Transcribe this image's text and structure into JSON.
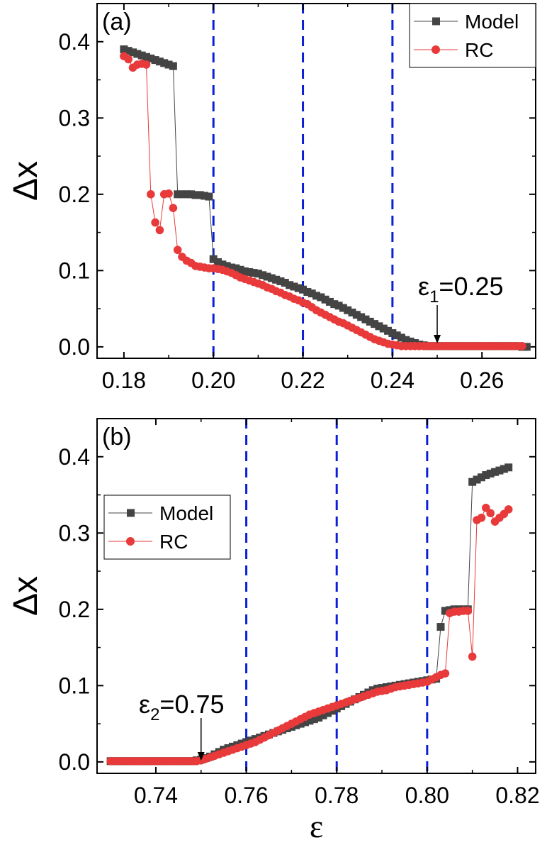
{
  "colors": {
    "model": "#444444",
    "rc": "#e83a3a",
    "vline": "#0a1fd6"
  },
  "chart_data": [
    {
      "type": "scatter",
      "panel_label": "(a)",
      "xlabel": "",
      "ylabel": "Δx",
      "xlim": [
        0.174,
        0.272
      ],
      "ylim": [
        -0.015,
        0.45
      ],
      "xticks": [
        0.18,
        0.2,
        0.22,
        0.24,
        0.26
      ],
      "xtick_labels": [
        "0.18",
        "0.20",
        "0.22",
        "0.24",
        "0.26"
      ],
      "yticks": [
        0.0,
        0.1,
        0.2,
        0.3,
        0.4
      ],
      "ytick_labels": [
        "0.0",
        "0.1",
        "0.2",
        "0.3",
        "0.4"
      ],
      "vlines": [
        0.2,
        0.22,
        0.24
      ],
      "legend": {
        "position": "top-right",
        "entries": [
          "Model",
          "RC"
        ]
      },
      "annotation": {
        "base": "ε",
        "sub": "1",
        "rest": "=0.25",
        "x": 0.25,
        "y": 0.002
      },
      "series": [
        {
          "name": "Model",
          "marker": "square",
          "x": [
            0.18,
            0.181,
            0.182,
            0.183,
            0.184,
            0.185,
            0.186,
            0.187,
            0.188,
            0.189,
            0.19,
            0.191,
            0.192,
            0.193,
            0.194,
            0.195,
            0.196,
            0.197,
            0.198,
            0.199,
            0.2,
            0.201,
            0.202,
            0.203,
            0.204,
            0.205,
            0.206,
            0.207,
            0.208,
            0.209,
            0.21,
            0.211,
            0.212,
            0.213,
            0.214,
            0.215,
            0.216,
            0.217,
            0.218,
            0.219,
            0.22,
            0.221,
            0.222,
            0.223,
            0.224,
            0.225,
            0.226,
            0.227,
            0.228,
            0.229,
            0.23,
            0.231,
            0.232,
            0.233,
            0.234,
            0.235,
            0.236,
            0.237,
            0.238,
            0.239,
            0.24,
            0.241,
            0.242,
            0.243,
            0.244,
            0.245,
            0.246,
            0.247,
            0.248,
            0.249,
            0.25,
            0.251,
            0.252,
            0.253,
            0.254,
            0.255,
            0.256,
            0.257,
            0.258,
            0.259,
            0.26,
            0.261,
            0.262,
            0.263,
            0.264,
            0.265,
            0.266,
            0.267,
            0.268,
            0.269,
            0.27
          ],
          "y": [
            0.39,
            0.388,
            0.386,
            0.384,
            0.382,
            0.38,
            0.378,
            0.376,
            0.374,
            0.372,
            0.37,
            0.368,
            0.2,
            0.2,
            0.2,
            0.2,
            0.199,
            0.199,
            0.198,
            0.197,
            0.115,
            0.111,
            0.108,
            0.106,
            0.104,
            0.103,
            0.101,
            0.099,
            0.098,
            0.097,
            0.096,
            0.094,
            0.092,
            0.09,
            0.088,
            0.086,
            0.084,
            0.081,
            0.079,
            0.077,
            0.075,
            0.072,
            0.07,
            0.067,
            0.065,
            0.062,
            0.059,
            0.056,
            0.054,
            0.051,
            0.048,
            0.045,
            0.042,
            0.039,
            0.036,
            0.033,
            0.03,
            0.027,
            0.024,
            0.021,
            0.018,
            0.015,
            0.012,
            0.009,
            0.007,
            0.005,
            0.003,
            0.002,
            0.001,
            0.001,
            0.001,
            0.001,
            0.001,
            0.001,
            0.001,
            0.001,
            0.001,
            0.001,
            0.001,
            0.001,
            0.001,
            0.001,
            0.001,
            0.001,
            0.001,
            0.001,
            0.001,
            0.001,
            0.001,
            0.0,
            0.0
          ]
        },
        {
          "name": "RC",
          "marker": "circle",
          "x": [
            0.18,
            0.181,
            0.182,
            0.183,
            0.184,
            0.185,
            0.186,
            0.187,
            0.188,
            0.189,
            0.19,
            0.191,
            0.192,
            0.193,
            0.194,
            0.195,
            0.196,
            0.197,
            0.198,
            0.199,
            0.2,
            0.201,
            0.202,
            0.203,
            0.204,
            0.205,
            0.206,
            0.207,
            0.208,
            0.209,
            0.21,
            0.211,
            0.212,
            0.213,
            0.214,
            0.215,
            0.216,
            0.217,
            0.218,
            0.219,
            0.22,
            0.221,
            0.222,
            0.223,
            0.224,
            0.225,
            0.226,
            0.227,
            0.228,
            0.229,
            0.23,
            0.231,
            0.232,
            0.233,
            0.234,
            0.235,
            0.236,
            0.237,
            0.238,
            0.239,
            0.24,
            0.241,
            0.242,
            0.243,
            0.244,
            0.245,
            0.246,
            0.247,
            0.248,
            0.249,
            0.25,
            0.251,
            0.252,
            0.253,
            0.254,
            0.255,
            0.256,
            0.257,
            0.258,
            0.259,
            0.26,
            0.261,
            0.262,
            0.263,
            0.264,
            0.265,
            0.266,
            0.267,
            0.268,
            0.269
          ],
          "y": [
            0.381,
            0.377,
            0.366,
            0.37,
            0.371,
            0.37,
            0.2,
            0.163,
            0.153,
            0.2,
            0.201,
            0.182,
            0.127,
            0.118,
            0.113,
            0.11,
            0.106,
            0.105,
            0.104,
            0.103,
            0.103,
            0.102,
            0.101,
            0.099,
            0.097,
            0.094,
            0.091,
            0.089,
            0.087,
            0.085,
            0.083,
            0.081,
            0.078,
            0.076,
            0.073,
            0.071,
            0.068,
            0.066,
            0.063,
            0.061,
            0.058,
            0.056,
            0.052,
            0.048,
            0.045,
            0.042,
            0.039,
            0.036,
            0.033,
            0.031,
            0.028,
            0.025,
            0.022,
            0.019,
            0.016,
            0.013,
            0.01,
            0.008,
            0.006,
            0.004,
            0.003,
            0.002,
            0.001,
            0.001,
            0.001,
            0.001,
            0.001,
            0.001,
            0.001,
            0.001,
            0.001,
            0.001,
            0.001,
            0.001,
            0.001,
            0.001,
            0.001,
            0.001,
            0.001,
            0.001,
            0.001,
            0.001,
            0.001,
            0.001,
            0.001,
            0.001,
            0.001,
            0.001,
            0.001,
            0.001
          ]
        }
      ]
    },
    {
      "type": "scatter",
      "panel_label": "(b)",
      "xlabel": "ε",
      "ylabel": "Δx",
      "xlim": [
        0.727,
        0.824
      ],
      "ylim": [
        -0.015,
        0.45
      ],
      "xticks": [
        0.74,
        0.76,
        0.78,
        0.8,
        0.82
      ],
      "xtick_labels": [
        "0.74",
        "0.76",
        "0.78",
        "0.80",
        "0.82"
      ],
      "yticks": [
        0.0,
        0.1,
        0.2,
        0.3,
        0.4
      ],
      "ytick_labels": [
        "0.0",
        "0.1",
        "0.2",
        "0.3",
        "0.4"
      ],
      "vlines": [
        0.76,
        0.78,
        0.8
      ],
      "legend": {
        "position": "middle-left",
        "entries": [
          "Model",
          "RC"
        ]
      },
      "annotation": {
        "base": "ε",
        "sub": "2",
        "rest": "=0.75",
        "x": 0.75,
        "y": 0.002
      },
      "series": [
        {
          "name": "Model",
          "marker": "square",
          "x": [
            0.73,
            0.731,
            0.732,
            0.733,
            0.734,
            0.735,
            0.736,
            0.737,
            0.738,
            0.739,
            0.74,
            0.741,
            0.742,
            0.743,
            0.744,
            0.745,
            0.746,
            0.747,
            0.748,
            0.749,
            0.75,
            0.751,
            0.752,
            0.753,
            0.754,
            0.755,
            0.756,
            0.757,
            0.758,
            0.759,
            0.76,
            0.761,
            0.762,
            0.763,
            0.764,
            0.765,
            0.766,
            0.767,
            0.768,
            0.769,
            0.77,
            0.771,
            0.772,
            0.773,
            0.774,
            0.775,
            0.776,
            0.777,
            0.778,
            0.779,
            0.78,
            0.781,
            0.782,
            0.783,
            0.784,
            0.785,
            0.786,
            0.787,
            0.788,
            0.789,
            0.79,
            0.791,
            0.792,
            0.793,
            0.794,
            0.795,
            0.796,
            0.797,
            0.798,
            0.799,
            0.8,
            0.801,
            0.802,
            0.803,
            0.804,
            0.805,
            0.806,
            0.807,
            0.808,
            0.809,
            0.81,
            0.811,
            0.812,
            0.813,
            0.814,
            0.815,
            0.816,
            0.817,
            0.818
          ],
          "y": [
            0.001,
            0.001,
            0.001,
            0.001,
            0.001,
            0.001,
            0.001,
            0.001,
            0.001,
            0.001,
            0.001,
            0.001,
            0.001,
            0.001,
            0.001,
            0.001,
            0.001,
            0.001,
            0.001,
            0.002,
            0.003,
            0.005,
            0.007,
            0.01,
            0.013,
            0.016,
            0.018,
            0.02,
            0.022,
            0.024,
            0.026,
            0.028,
            0.03,
            0.032,
            0.034,
            0.036,
            0.038,
            0.04,
            0.042,
            0.044,
            0.046,
            0.048,
            0.05,
            0.052,
            0.054,
            0.056,
            0.058,
            0.061,
            0.064,
            0.067,
            0.07,
            0.073,
            0.076,
            0.079,
            0.082,
            0.085,
            0.088,
            0.091,
            0.094,
            0.096,
            0.097,
            0.098,
            0.099,
            0.1,
            0.101,
            0.102,
            0.103,
            0.104,
            0.105,
            0.106,
            0.107,
            0.108,
            0.109,
            0.177,
            0.198,
            0.199,
            0.2,
            0.2,
            0.2,
            0.2,
            0.367,
            0.37,
            0.373,
            0.376,
            0.378,
            0.38,
            0.382,
            0.384,
            0.386
          ]
        },
        {
          "name": "RC",
          "marker": "circle",
          "x": [
            0.73,
            0.731,
            0.732,
            0.733,
            0.734,
            0.735,
            0.736,
            0.737,
            0.738,
            0.739,
            0.74,
            0.741,
            0.742,
            0.743,
            0.744,
            0.745,
            0.746,
            0.747,
            0.748,
            0.749,
            0.75,
            0.751,
            0.752,
            0.753,
            0.754,
            0.755,
            0.756,
            0.757,
            0.758,
            0.759,
            0.76,
            0.761,
            0.762,
            0.763,
            0.764,
            0.765,
            0.766,
            0.767,
            0.768,
            0.769,
            0.77,
            0.771,
            0.772,
            0.773,
            0.774,
            0.775,
            0.776,
            0.777,
            0.778,
            0.779,
            0.78,
            0.781,
            0.782,
            0.783,
            0.784,
            0.785,
            0.786,
            0.787,
            0.788,
            0.789,
            0.79,
            0.791,
            0.792,
            0.793,
            0.794,
            0.795,
            0.796,
            0.797,
            0.798,
            0.799,
            0.8,
            0.801,
            0.802,
            0.803,
            0.804,
            0.805,
            0.806,
            0.807,
            0.808,
            0.809,
            0.81,
            0.811,
            0.812,
            0.813,
            0.814,
            0.815,
            0.816,
            0.817,
            0.818
          ],
          "y": [
            0.001,
            0.001,
            0.001,
            0.001,
            0.001,
            0.001,
            0.001,
            0.001,
            0.001,
            0.001,
            0.001,
            0.001,
            0.001,
            0.001,
            0.001,
            0.001,
            0.001,
            0.001,
            0.001,
            0.001,
            0.002,
            0.004,
            0.006,
            0.008,
            0.01,
            0.012,
            0.014,
            0.016,
            0.018,
            0.02,
            0.022,
            0.024,
            0.026,
            0.029,
            0.032,
            0.035,
            0.038,
            0.041,
            0.044,
            0.047,
            0.05,
            0.053,
            0.056,
            0.059,
            0.062,
            0.064,
            0.066,
            0.068,
            0.07,
            0.072,
            0.074,
            0.076,
            0.078,
            0.08,
            0.082,
            0.084,
            0.086,
            0.088,
            0.09,
            0.092,
            0.093,
            0.094,
            0.096,
            0.098,
            0.099,
            0.1,
            0.101,
            0.102,
            0.103,
            0.104,
            0.105,
            0.108,
            0.111,
            0.114,
            0.116,
            0.195,
            0.197,
            0.197,
            0.198,
            0.198,
            0.138,
            0.317,
            0.32,
            0.333,
            0.326,
            0.315,
            0.32,
            0.325,
            0.331
          ]
        }
      ]
    }
  ]
}
